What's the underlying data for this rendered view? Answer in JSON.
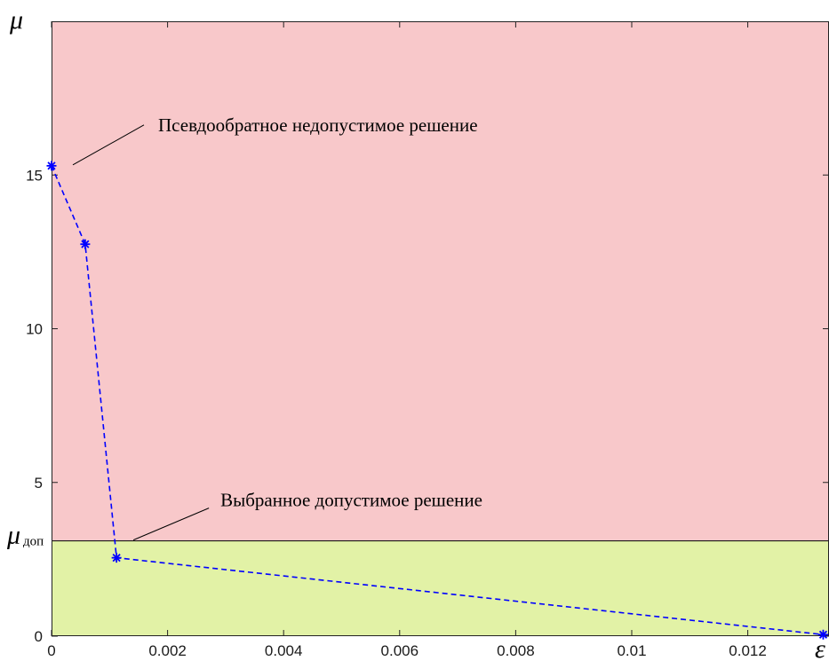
{
  "chart_data": {
    "type": "line",
    "xlabel": "ε",
    "ylabel": "μ",
    "xlim": [
      0,
      0.0134
    ],
    "ylim": [
      0,
      20
    ],
    "x_ticks": [
      0,
      0.002,
      0.004,
      0.006,
      0.008,
      0.01,
      0.012
    ],
    "x_tick_labels": [
      "0",
      "0.002",
      "0.004",
      "0.006",
      "0.008",
      "0.01",
      "0.012"
    ],
    "y_ticks": [
      0,
      5,
      10,
      15
    ],
    "y_tick_labels": [
      "0",
      "5",
      "10",
      "15"
    ],
    "threshold": {
      "value": 3.1,
      "label_main": "μ",
      "label_sub": "доп"
    },
    "regions": {
      "above_color": "#f8c8ca",
      "below_color": "#e2f2a6"
    },
    "series": [
      {
        "style": "dashed",
        "marker": "asterisk",
        "color": "#0000ff",
        "x": [
          0,
          0.00058,
          0.00112,
          0.0133
        ],
        "y": [
          15.3,
          12.75,
          2.55,
          0.05
        ]
      }
    ],
    "annotations": [
      {
        "text": "Псевдообратное недопустимое решение",
        "point_index": 0
      },
      {
        "text": "Выбранное допустимое решение",
        "point_index": 2
      }
    ],
    "grid": false
  }
}
